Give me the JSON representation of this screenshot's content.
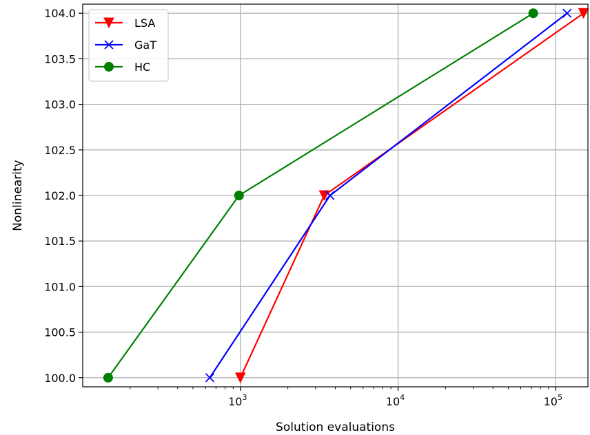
{
  "chart_data": {
    "type": "line",
    "xlabel": "Solution evaluations",
    "ylabel": "Nonlinearity",
    "xscale": "log",
    "xlim": [
      100,
      160000
    ],
    "ylim": [
      99.9,
      104.1
    ],
    "x_ticks": [
      {
        "value": 1000,
        "base": "10",
        "exp": "3"
      },
      {
        "value": 10000,
        "base": "10",
        "exp": "4"
      },
      {
        "value": 100000,
        "base": "10",
        "exp": "5"
      }
    ],
    "y_ticks": [
      "100.0",
      "100.5",
      "101.0",
      "101.5",
      "102.0",
      "102.5",
      "103.0",
      "103.5",
      "104.0"
    ],
    "grid": true,
    "legend_position": "top-left",
    "series": [
      {
        "name": "LSA",
        "color": "#ff0000",
        "marker": "triangle-down",
        "x": [
          1000,
          3400,
          150000
        ],
        "y": [
          100,
          102,
          104
        ]
      },
      {
        "name": "GaT",
        "color": "#0000ff",
        "marker": "x",
        "x": [
          640,
          3700,
          118000
        ],
        "y": [
          100,
          102,
          104
        ]
      },
      {
        "name": "HC",
        "color": "#008000",
        "marker": "circle",
        "x": [
          145,
          980,
          72000
        ],
        "y": [
          100,
          102,
          104
        ]
      }
    ]
  }
}
